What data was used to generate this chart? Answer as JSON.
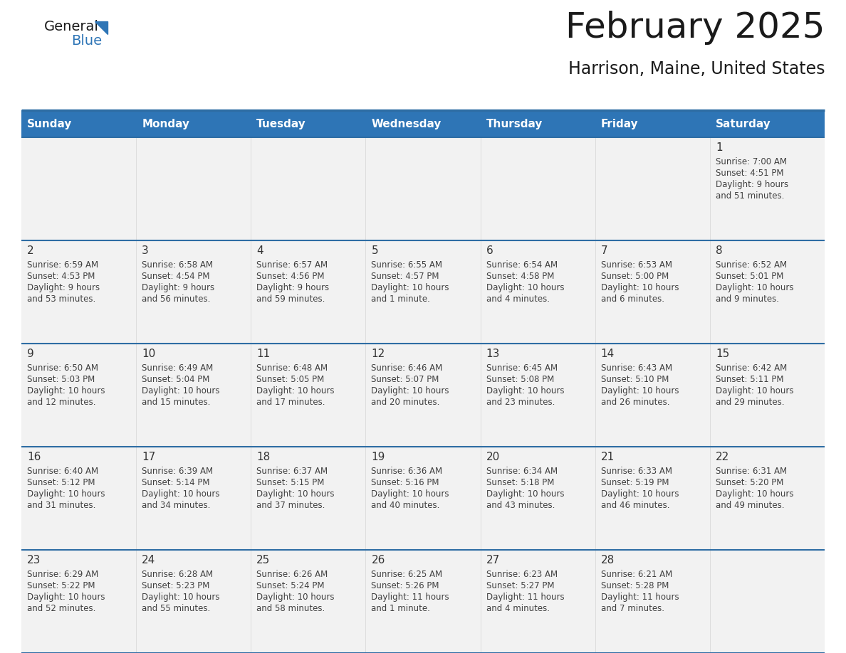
{
  "title": "February 2025",
  "subtitle": "Harrison, Maine, United States",
  "days_of_week": [
    "Sunday",
    "Monday",
    "Tuesday",
    "Wednesday",
    "Thursday",
    "Friday",
    "Saturday"
  ],
  "header_bg_color": "#2E75B6",
  "header_text_color": "#FFFFFF",
  "row_bg_color": "#F2F2F2",
  "separator_color": "#2E6DA4",
  "cell_text_color": "#404040",
  "day_number_color": "#333333",
  "logo_general_color": "#1A1A1A",
  "logo_blue_color": "#2E75B6",
  "border_color": "#2E6DA4",
  "calendar_data": [
    [
      null,
      null,
      null,
      null,
      null,
      null,
      {
        "day": 1,
        "sunrise": "7:00 AM",
        "sunset": "4:51 PM",
        "daylight": "9 hours",
        "daylight2": "and 51 minutes."
      }
    ],
    [
      {
        "day": 2,
        "sunrise": "6:59 AM",
        "sunset": "4:53 PM",
        "daylight": "9 hours",
        "daylight2": "and 53 minutes."
      },
      {
        "day": 3,
        "sunrise": "6:58 AM",
        "sunset": "4:54 PM",
        "daylight": "9 hours",
        "daylight2": "and 56 minutes."
      },
      {
        "day": 4,
        "sunrise": "6:57 AM",
        "sunset": "4:56 PM",
        "daylight": "9 hours",
        "daylight2": "and 59 minutes."
      },
      {
        "day": 5,
        "sunrise": "6:55 AM",
        "sunset": "4:57 PM",
        "daylight": "10 hours",
        "daylight2": "and 1 minute."
      },
      {
        "day": 6,
        "sunrise": "6:54 AM",
        "sunset": "4:58 PM",
        "daylight": "10 hours",
        "daylight2": "and 4 minutes."
      },
      {
        "day": 7,
        "sunrise": "6:53 AM",
        "sunset": "5:00 PM",
        "daylight": "10 hours",
        "daylight2": "and 6 minutes."
      },
      {
        "day": 8,
        "sunrise": "6:52 AM",
        "sunset": "5:01 PM",
        "daylight": "10 hours",
        "daylight2": "and 9 minutes."
      }
    ],
    [
      {
        "day": 9,
        "sunrise": "6:50 AM",
        "sunset": "5:03 PM",
        "daylight": "10 hours",
        "daylight2": "and 12 minutes."
      },
      {
        "day": 10,
        "sunrise": "6:49 AM",
        "sunset": "5:04 PM",
        "daylight": "10 hours",
        "daylight2": "and 15 minutes."
      },
      {
        "day": 11,
        "sunrise": "6:48 AM",
        "sunset": "5:05 PM",
        "daylight": "10 hours",
        "daylight2": "and 17 minutes."
      },
      {
        "day": 12,
        "sunrise": "6:46 AM",
        "sunset": "5:07 PM",
        "daylight": "10 hours",
        "daylight2": "and 20 minutes."
      },
      {
        "day": 13,
        "sunrise": "6:45 AM",
        "sunset": "5:08 PM",
        "daylight": "10 hours",
        "daylight2": "and 23 minutes."
      },
      {
        "day": 14,
        "sunrise": "6:43 AM",
        "sunset": "5:10 PM",
        "daylight": "10 hours",
        "daylight2": "and 26 minutes."
      },
      {
        "day": 15,
        "sunrise": "6:42 AM",
        "sunset": "5:11 PM",
        "daylight": "10 hours",
        "daylight2": "and 29 minutes."
      }
    ],
    [
      {
        "day": 16,
        "sunrise": "6:40 AM",
        "sunset": "5:12 PM",
        "daylight": "10 hours",
        "daylight2": "and 31 minutes."
      },
      {
        "day": 17,
        "sunrise": "6:39 AM",
        "sunset": "5:14 PM",
        "daylight": "10 hours",
        "daylight2": "and 34 minutes."
      },
      {
        "day": 18,
        "sunrise": "6:37 AM",
        "sunset": "5:15 PM",
        "daylight": "10 hours",
        "daylight2": "and 37 minutes."
      },
      {
        "day": 19,
        "sunrise": "6:36 AM",
        "sunset": "5:16 PM",
        "daylight": "10 hours",
        "daylight2": "and 40 minutes."
      },
      {
        "day": 20,
        "sunrise": "6:34 AM",
        "sunset": "5:18 PM",
        "daylight": "10 hours",
        "daylight2": "and 43 minutes."
      },
      {
        "day": 21,
        "sunrise": "6:33 AM",
        "sunset": "5:19 PM",
        "daylight": "10 hours",
        "daylight2": "and 46 minutes."
      },
      {
        "day": 22,
        "sunrise": "6:31 AM",
        "sunset": "5:20 PM",
        "daylight": "10 hours",
        "daylight2": "and 49 minutes."
      }
    ],
    [
      {
        "day": 23,
        "sunrise": "6:29 AM",
        "sunset": "5:22 PM",
        "daylight": "10 hours",
        "daylight2": "and 52 minutes."
      },
      {
        "day": 24,
        "sunrise": "6:28 AM",
        "sunset": "5:23 PM",
        "daylight": "10 hours",
        "daylight2": "and 55 minutes."
      },
      {
        "day": 25,
        "sunrise": "6:26 AM",
        "sunset": "5:24 PM",
        "daylight": "10 hours",
        "daylight2": "and 58 minutes."
      },
      {
        "day": 26,
        "sunrise": "6:25 AM",
        "sunset": "5:26 PM",
        "daylight": "11 hours",
        "daylight2": "and 1 minute."
      },
      {
        "day": 27,
        "sunrise": "6:23 AM",
        "sunset": "5:27 PM",
        "daylight": "11 hours",
        "daylight2": "and 4 minutes."
      },
      {
        "day": 28,
        "sunrise": "6:21 AM",
        "sunset": "5:28 PM",
        "daylight": "11 hours",
        "daylight2": "and 7 minutes."
      },
      null
    ]
  ]
}
